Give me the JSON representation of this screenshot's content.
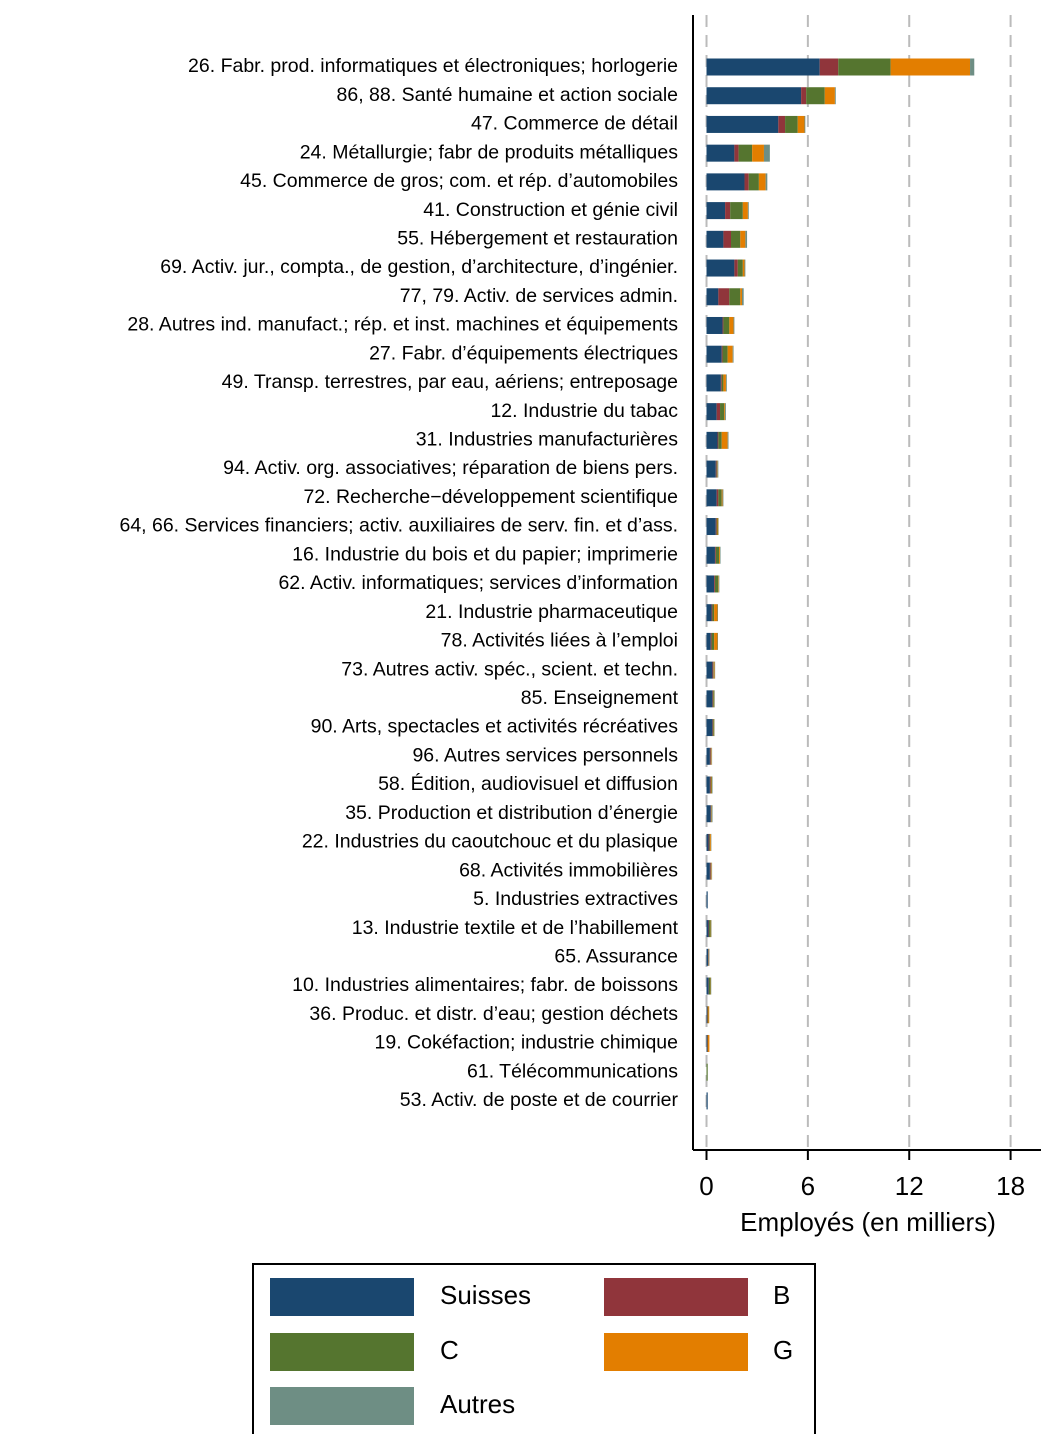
{
  "chart_data": {
    "type": "stacked_barh",
    "x_label": "Employés (en milliers)",
    "categories": [
      "26. Fabr. prod. informatiques et électroniques; horlogerie",
      "86, 88. Santé humaine et action sociale",
      "47. Commerce de détail",
      "24. Métallurgie; fabr de produits métalliques",
      "45. Commerce de gros; com. et rép. d’automobiles",
      "41. Construction et génie civil",
      "55. Hébergement et restauration",
      "69. Activ. jur., compta., de gestion, d’architecture, d’ingénier.",
      "77, 79. Activ. de services admin.",
      "28. Autres ind. manufact.; rép. et inst. machines et équipements",
      "27. Fabr. d’équipements électriques",
      "49. Transp. terrestres, par eau, aériens; entreposage",
      "12. Industrie du tabac",
      "31. Industries manufacturières",
      "94. Activ. org. associatives; réparation de biens pers.",
      "72. Recherche−développement scientifique",
      "64, 66. Services financiers; activ. auxiliaires de serv. fin. et d’ass.",
      "16. Industrie du bois et du papier; imprimerie",
      "62. Activ. informatiques; services d’information",
      "21. Industrie pharmaceutique",
      "78. Activités liées à l’emploi",
      "73. Autres activ. spéc., scient. et techn.",
      "85. Enseignement",
      "90. Arts, spectacles et activités récréatives",
      "96. Autres services personnels",
      "58. Édition, audiovisuel et diffusion",
      "35. Production et distribution d’énergie",
      "22. Industries du caoutchouc et du plasique",
      "68. Activités immobilières",
      "5. Industries extractives",
      "13. Industrie textile et de l’habillement",
      "65. Assurance",
      "10. Industries alimentaires; fabr. de boissons",
      "36. Produc. et distr. d’eau; gestion déchets",
      "19. Cokéfaction; industrie chimique",
      "61. Télécommunications",
      "53. Activ. de poste et de courrier"
    ],
    "series": [
      {
        "name": "Suisses",
        "color": "#1a476f",
        "values": [
          6.7,
          5.6,
          4.25,
          1.65,
          2.25,
          1.1,
          1.0,
          1.65,
          0.7,
          0.95,
          0.9,
          0.85,
          0.6,
          0.65,
          0.55,
          0.6,
          0.55,
          0.5,
          0.45,
          0.3,
          0.25,
          0.35,
          0.35,
          0.35,
          0.2,
          0.2,
          0.25,
          0.12,
          0.2,
          0.07,
          0.12,
          0.1,
          0.12,
          0.03,
          0.03,
          0.0,
          0.07
        ]
      },
      {
        "name": "B",
        "color": "#90353b",
        "values": [
          1.1,
          0.3,
          0.4,
          0.25,
          0.25,
          0.3,
          0.45,
          0.2,
          0.65,
          0.05,
          0.05,
          0.05,
          0.2,
          0.05,
          0.05,
          0.1,
          0.05,
          0.05,
          0.05,
          0.05,
          0.05,
          0.05,
          0.03,
          0.03,
          0.05,
          0.05,
          0.03,
          0.05,
          0.05,
          0.0,
          0.03,
          0.02,
          0.02,
          0.03,
          0.03,
          0.0,
          0.0
        ]
      },
      {
        "name": "C",
        "color": "#55752f",
        "values": [
          3.1,
          1.1,
          0.75,
          0.8,
          0.6,
          0.75,
          0.55,
          0.3,
          0.65,
          0.35,
          0.3,
          0.1,
          0.25,
          0.2,
          0.03,
          0.2,
          0.05,
          0.2,
          0.2,
          0.1,
          0.15,
          0.03,
          0.05,
          0.05,
          0.03,
          0.05,
          0.03,
          0.05,
          0.03,
          0.0,
          0.1,
          0.02,
          0.1,
          0.05,
          0.03,
          0.07,
          0.0
        ]
      },
      {
        "name": "G",
        "color": "#e37e00",
        "values": [
          4.7,
          0.6,
          0.4,
          0.7,
          0.4,
          0.3,
          0.3,
          0.1,
          0.1,
          0.25,
          0.3,
          0.15,
          0.05,
          0.35,
          0.02,
          0.05,
          0.05,
          0.05,
          0.03,
          0.2,
          0.2,
          0.05,
          0.03,
          0.03,
          0.03,
          0.03,
          0.02,
          0.05,
          0.03,
          0.0,
          0.03,
          0.02,
          0.02,
          0.05,
          0.08,
          0.0,
          0.0
        ]
      },
      {
        "name": "Autres",
        "color": "#6e8e84",
        "values": [
          0.25,
          0.05,
          0.05,
          0.35,
          0.1,
          0.05,
          0.1,
          0.05,
          0.1,
          0.05,
          0.05,
          0.05,
          0.05,
          0.05,
          0.05,
          0.05,
          0.02,
          0.03,
          0.03,
          0.03,
          0.03,
          0.03,
          0.03,
          0.02,
          0.02,
          0.03,
          0.03,
          0.02,
          0.02,
          0.0,
          0.02,
          0.02,
          0.02,
          0.0,
          0.0,
          0.0,
          0.0
        ]
      }
    ],
    "xlim": [
      -0.8,
      19.8
    ],
    "xticks": [
      0,
      6,
      12,
      18
    ],
    "grid": true
  }
}
